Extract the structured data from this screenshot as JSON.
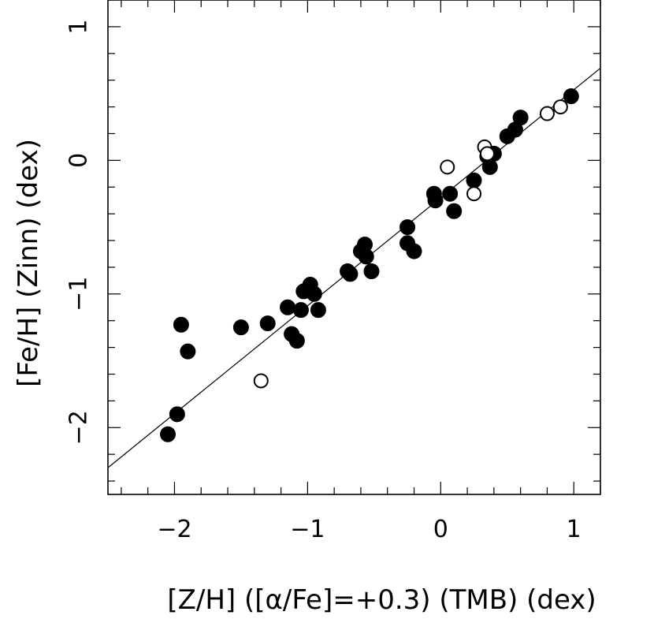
{
  "chart_data": {
    "type": "scatter",
    "title": "",
    "xlabel": "[Z/H] ([α/Fe]=+0.3) (TMB) (dex)",
    "ylabel": "[Fe/H] (Zinn) (dex)",
    "xlim": [
      -2.5,
      1.2
    ],
    "ylim": [
      -2.5,
      1.2
    ],
    "x_ticks": [
      {
        "value": -2,
        "label": "−2"
      },
      {
        "value": -1,
        "label": "−1"
      },
      {
        "value": 0,
        "label": "0"
      },
      {
        "value": 1,
        "label": "1"
      }
    ],
    "y_ticks": [
      {
        "value": -2,
        "label": "−2"
      },
      {
        "value": -1,
        "label": "−1"
      },
      {
        "value": 0,
        "label": "0"
      },
      {
        "value": 1,
        "label": "1"
      }
    ],
    "minor_tick_step": 0.2,
    "grid": false,
    "legend": "none",
    "fit_line": {
      "x": [
        -2.5,
        1.2
      ],
      "y": [
        -2.3,
        0.69
      ]
    },
    "series": [
      {
        "marker": "filled-circle",
        "color": "#000000",
        "points": [
          [
            -2.05,
            -2.05
          ],
          [
            -1.98,
            -1.9
          ],
          [
            -1.95,
            -1.23
          ],
          [
            -1.9,
            -1.43
          ],
          [
            -1.5,
            -1.25
          ],
          [
            -1.3,
            -1.22
          ],
          [
            -1.15,
            -1.1
          ],
          [
            -1.12,
            -1.3
          ],
          [
            -1.08,
            -1.35
          ],
          [
            -1.05,
            -1.12
          ],
          [
            -1.03,
            -0.98
          ],
          [
            -0.98,
            -0.93
          ],
          [
            -0.95,
            -1.0
          ],
          [
            -0.92,
            -1.12
          ],
          [
            -0.7,
            -0.83
          ],
          [
            -0.68,
            -0.85
          ],
          [
            -0.6,
            -0.68
          ],
          [
            -0.57,
            -0.63
          ],
          [
            -0.56,
            -0.72
          ],
          [
            -0.52,
            -0.83
          ],
          [
            -0.25,
            -0.5
          ],
          [
            -0.25,
            -0.62
          ],
          [
            -0.2,
            -0.68
          ],
          [
            -0.05,
            -0.25
          ],
          [
            -0.04,
            -0.3
          ],
          [
            0.07,
            -0.25
          ],
          [
            0.1,
            -0.38
          ],
          [
            0.25,
            -0.15
          ],
          [
            0.35,
            0.03
          ],
          [
            0.37,
            -0.05
          ],
          [
            0.4,
            0.05
          ],
          [
            0.5,
            0.18
          ],
          [
            0.56,
            0.23
          ],
          [
            0.6,
            0.32
          ],
          [
            0.98,
            0.48
          ]
        ]
      },
      {
        "marker": "open-circle",
        "color": "#000000",
        "points": [
          [
            -1.35,
            -1.65
          ],
          [
            0.05,
            -0.05
          ],
          [
            0.25,
            -0.25
          ],
          [
            0.33,
            0.1
          ],
          [
            0.35,
            0.05
          ],
          [
            0.8,
            0.35
          ],
          [
            0.9,
            0.4
          ]
        ]
      }
    ]
  }
}
